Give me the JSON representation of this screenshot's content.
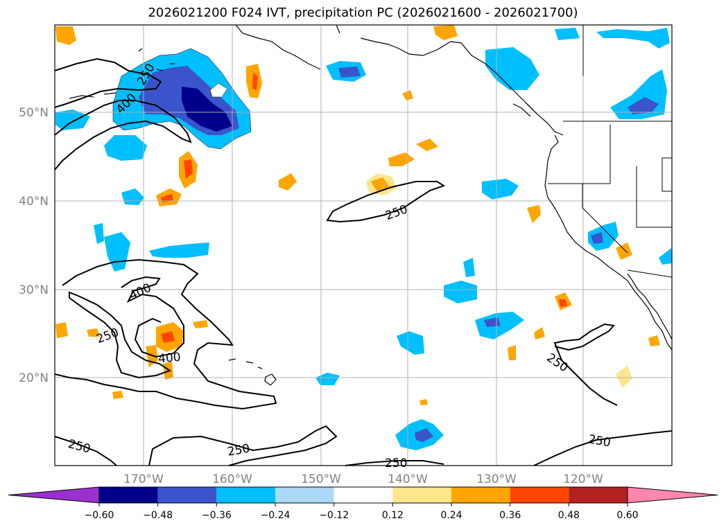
{
  "title": "2026021200 F024 IVT, precipitation PC (2026021600 - 2026021700)",
  "map": {
    "lat_labels": [
      "50°N",
      "40°N",
      "30°N",
      "20°N"
    ],
    "lon_labels": [
      "170°W",
      "160°W",
      "150°W",
      "140°W",
      "130°W",
      "120°W"
    ],
    "contour_labels": [
      "250",
      "400",
      "250",
      "400",
      "400",
      "250",
      "250",
      "250",
      "250",
      "250"
    ],
    "colors": {
      "coast": "#000000",
      "grid": "#b0b0b0",
      "contour": "#000000"
    }
  },
  "colorbar": {
    "tick_labels": [
      "−0.60",
      "−0.48",
      "−0.36",
      "−0.24",
      "−0.12",
      "0.12",
      "0.24",
      "0.36",
      "0.48",
      "0.60"
    ],
    "bins": [
      {
        "range": "< -0.60",
        "color": "#9b30d0"
      },
      {
        "range": "-0.60 – -0.48",
        "color": "#00008b"
      },
      {
        "range": "-0.48 – -0.36",
        "color": "#3a55cc"
      },
      {
        "range": "-0.36 – -0.24",
        "color": "#00bfff"
      },
      {
        "range": "-0.24 – -0.12",
        "color": "#add8f7"
      },
      {
        "range": "-0.12 – 0.12",
        "color": "#ffffff"
      },
      {
        "range": "0.12 – 0.24",
        "color": "#ffe68a"
      },
      {
        "range": "0.24 – 0.36",
        "color": "#ffa500"
      },
      {
        "range": "0.36 – 0.48",
        "color": "#ff4500"
      },
      {
        "range": "0.48 – 0.60",
        "color": "#b22222"
      },
      {
        "range": "> 0.60",
        "color": "#ff86ad"
      }
    ]
  }
}
